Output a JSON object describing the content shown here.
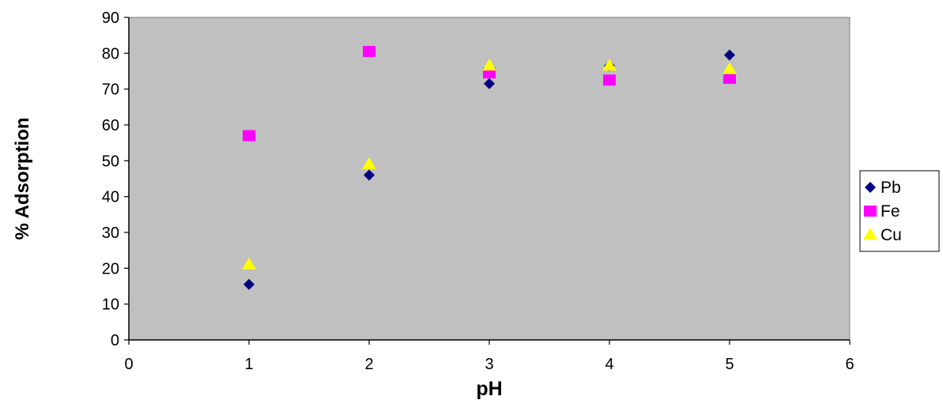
{
  "chart_data": {
    "type": "scatter",
    "title": "",
    "xlabel": "pH",
    "ylabel": "% Adsorption",
    "xlim": [
      0,
      6
    ],
    "ylim": [
      0,
      90
    ],
    "x_ticks": [
      "0",
      "1",
      "2",
      "3",
      "4",
      "5",
      "6"
    ],
    "y_ticks": [
      "0",
      "10",
      "20",
      "30",
      "40",
      "50",
      "60",
      "70",
      "80",
      "90"
    ],
    "grid": false,
    "plot_background": "#c0c0c0",
    "legend_position": "right",
    "series": [
      {
        "name": "Pb",
        "marker": "diamond",
        "color": "#000080",
        "points": [
          [
            1,
            15.5
          ],
          [
            2,
            46
          ],
          [
            3,
            71.5
          ],
          [
            4,
            76.5
          ],
          [
            5,
            79.5
          ]
        ]
      },
      {
        "name": "Fe",
        "marker": "square",
        "color": "#ff00ff",
        "points": [
          [
            1,
            57
          ],
          [
            2,
            80.5
          ],
          [
            3,
            74.5
          ],
          [
            4,
            72.5
          ],
          [
            5,
            73
          ]
        ]
      },
      {
        "name": "Cu",
        "marker": "triangle",
        "color": "#ffff00",
        "points": [
          [
            1,
            21
          ],
          [
            2,
            49
          ],
          [
            3,
            76.5
          ],
          [
            4,
            76.5
          ],
          [
            5,
            75.5
          ]
        ]
      }
    ]
  }
}
